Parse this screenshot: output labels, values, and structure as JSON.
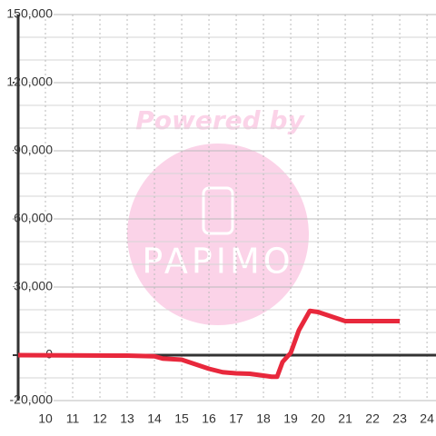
{
  "chart_data": {
    "type": "line",
    "watermark": {
      "top": "Powered by",
      "brand": "PAPIMO"
    },
    "x": [
      9,
      13,
      14,
      14.3,
      15,
      15.5,
      16,
      16.5,
      17,
      17.5,
      18,
      18.3,
      18.5,
      18.7,
      19,
      19.3,
      19.7,
      20,
      20.5,
      21,
      21.5,
      22,
      23
    ],
    "series": [
      {
        "color": "#e8283c",
        "values": [
          0,
          -200,
          -500,
          -1500,
          -2000,
          -4000,
          -6000,
          -7500,
          -8000,
          -8200,
          -9000,
          -9500,
          -9500,
          -3000,
          1000,
          11000,
          19500,
          19000,
          17000,
          15000,
          15000,
          15000,
          15000
        ]
      }
    ],
    "xlim": [
      9,
      24.33
    ],
    "xticks": [
      10,
      11,
      12,
      13,
      14,
      15,
      16,
      17,
      18,
      19,
      20,
      21,
      22,
      23,
      24
    ],
    "ylim": [
      -20000,
      150000
    ],
    "yticks": [
      {
        "value": -20000,
        "label": "-20,000"
      },
      0,
      {
        "value": 30000,
        "label": "30,000"
      },
      {
        "value": 60000,
        "label": "60,000"
      },
      {
        "value": 90000,
        "label": "90,000"
      },
      {
        "value": 120000,
        "label": "120,000"
      },
      {
        "value": 150000,
        "label": "150,000"
      }
    ],
    "minor_step": 10000,
    "grid": true
  }
}
